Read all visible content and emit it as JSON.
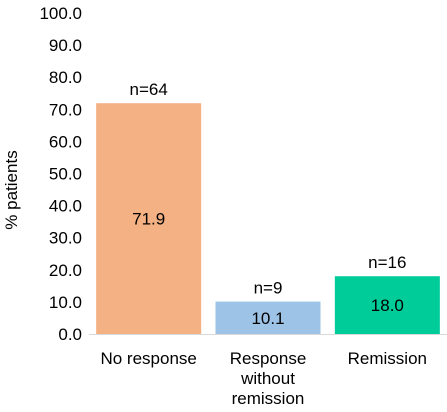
{
  "chart_data": {
    "type": "bar",
    "title": "",
    "xlabel": "",
    "ylabel": "% patients",
    "ylim": [
      0,
      100
    ],
    "ytick_step": 10,
    "ytick_labels": [
      "0.0",
      "10.0",
      "20.0",
      "30.0",
      "40.0",
      "50.0",
      "60.0",
      "70.0",
      "80.0",
      "90.0",
      "100.0"
    ],
    "grid": false,
    "legend": "none",
    "categories": [
      [
        "No response"
      ],
      [
        "Response",
        "without",
        "remission"
      ],
      [
        "Remission"
      ]
    ],
    "values": [
      71.9,
      10.1,
      18.0
    ],
    "value_labels": [
      "71.9",
      "10.1",
      "18.0"
    ],
    "n_labels": [
      "n=64",
      "n=9",
      "n=16"
    ],
    "colors": [
      "#F4B183",
      "#9DC3E6",
      "#00CC99"
    ]
  }
}
